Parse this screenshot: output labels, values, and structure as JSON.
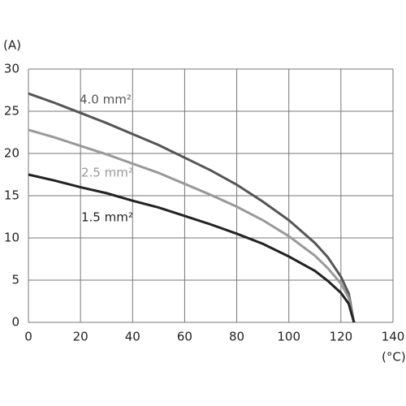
{
  "chart_data": {
    "type": "line",
    "y_label": "(A)",
    "x_label": "(°C)",
    "x": [
      0,
      10,
      20,
      30,
      40,
      50,
      60,
      70,
      80,
      90,
      100,
      110,
      115,
      120,
      123,
      125
    ],
    "series": [
      {
        "name": "4.0 mm²",
        "color": "#555555",
        "values": [
          27.1,
          26.0,
          24.8,
          23.6,
          22.3,
          21.0,
          19.5,
          18.0,
          16.3,
          14.3,
          12.1,
          9.4,
          7.7,
          5.4,
          3.4,
          0
        ]
      },
      {
        "name": "2.5 mm²",
        "color": "#999999",
        "values": [
          22.8,
          21.9,
          20.9,
          19.9,
          18.8,
          17.7,
          16.4,
          15.1,
          13.7,
          12.1,
          10.2,
          7.9,
          6.4,
          4.6,
          2.9,
          0
        ]
      },
      {
        "name": "1.5 mm²",
        "color": "#222222",
        "values": [
          17.5,
          16.8,
          16.0,
          15.3,
          14.4,
          13.6,
          12.6,
          11.6,
          10.5,
          9.3,
          7.8,
          6.1,
          4.9,
          3.5,
          2.2,
          0
        ]
      }
    ],
    "xlim": [
      0,
      140
    ],
    "xticks": [
      0,
      20,
      40,
      60,
      80,
      100,
      120,
      140
    ],
    "ylim": [
      0,
      30
    ],
    "yticks": [
      0,
      5,
      10,
      15,
      20,
      25,
      30
    ],
    "grid": true
  }
}
